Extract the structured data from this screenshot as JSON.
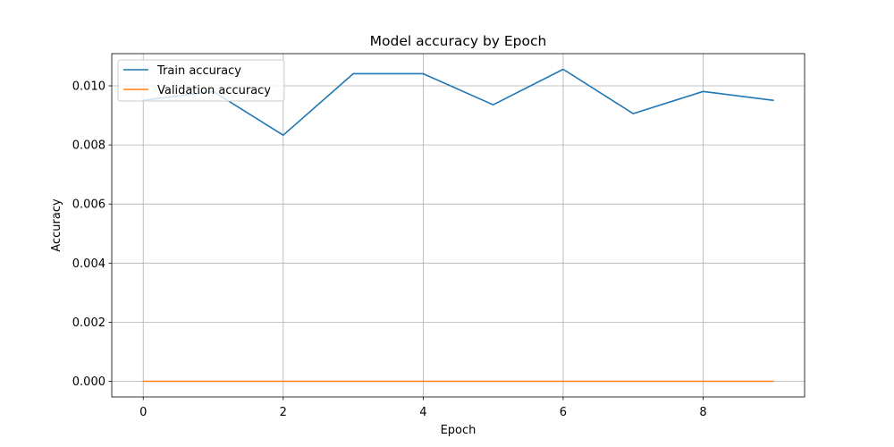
{
  "chart_data": {
    "type": "line",
    "title": "Model accuracy by Epoch",
    "xlabel": "Epoch",
    "ylabel": "Accuracy",
    "x": [
      0,
      1,
      2,
      3,
      4,
      5,
      6,
      7,
      8,
      9
    ],
    "series": [
      {
        "name": "Train accuracy",
        "color": "#1f77b4",
        "values": [
          0.00951,
          0.00981,
          0.00833,
          0.01041,
          0.01041,
          0.00936,
          0.01056,
          0.00906,
          0.00981,
          0.00951
        ]
      },
      {
        "name": "Validation accuracy",
        "color": "#ff7f0e",
        "values": [
          0,
          0,
          0,
          0,
          0,
          0,
          0,
          0,
          0,
          0
        ]
      }
    ],
    "xlim": [
      -0.45,
      9.45
    ],
    "ylim": [
      -0.00053,
      0.01109
    ],
    "xticks": [
      0,
      2,
      4,
      6,
      8
    ],
    "xtick_labels": [
      "0",
      "2",
      "4",
      "6",
      "8"
    ],
    "yticks": [
      0,
      0.002,
      0.004,
      0.006,
      0.008,
      0.01
    ],
    "ytick_labels": [
      "0.000",
      "0.002",
      "0.004",
      "0.006",
      "0.008",
      "0.010"
    ],
    "grid": true,
    "legend_position": "upper-left"
  }
}
